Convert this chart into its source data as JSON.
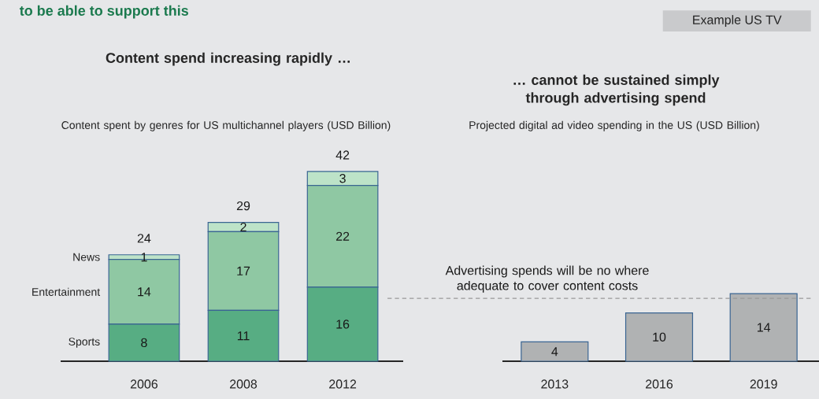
{
  "chart_data": [
    {
      "type": "bar",
      "stacked": true,
      "title": "Content spend increasing rapidly …",
      "subtitle": "Content spent by genres for US multichannel players (USD Billion)",
      "annotations": [
        "to be able to support this"
      ],
      "categories": [
        "2006",
        "2008",
        "2012"
      ],
      "series": [
        {
          "name": "Sports",
          "color": "#57ad83",
          "values": [
            8,
            11,
            16
          ]
        },
        {
          "name": "Entertainment",
          "color": "#8fc8a3",
          "values": [
            14,
            17,
            22
          ]
        },
        {
          "name": "News",
          "color": "#bde3c8",
          "values": [
            1,
            2,
            3
          ]
        }
      ],
      "data_labels": true,
      "totals": [
        "24",
        "29",
        "42"
      ]
    },
    {
      "type": "bar",
      "title": "… cannot be sustained simply through advertising spend",
      "subtitle": "Projected digital ad video spending in the US (USD Billion)",
      "annotations": [
        "Example US TV"
      ],
      "categories": [
        "2013",
        "2016",
        "2019"
      ],
      "values": [
        4,
        10,
        14
      ],
      "color": "#b0b2b3",
      "data_labels": true,
      "ref_lines": [
        {
          "axis": "y",
          "value": 13,
          "label": "Advertising spends will be no where adequate to cover content costs",
          "color": "#999999",
          "line_style": "dashed"
        }
      ]
    }
  ]
}
